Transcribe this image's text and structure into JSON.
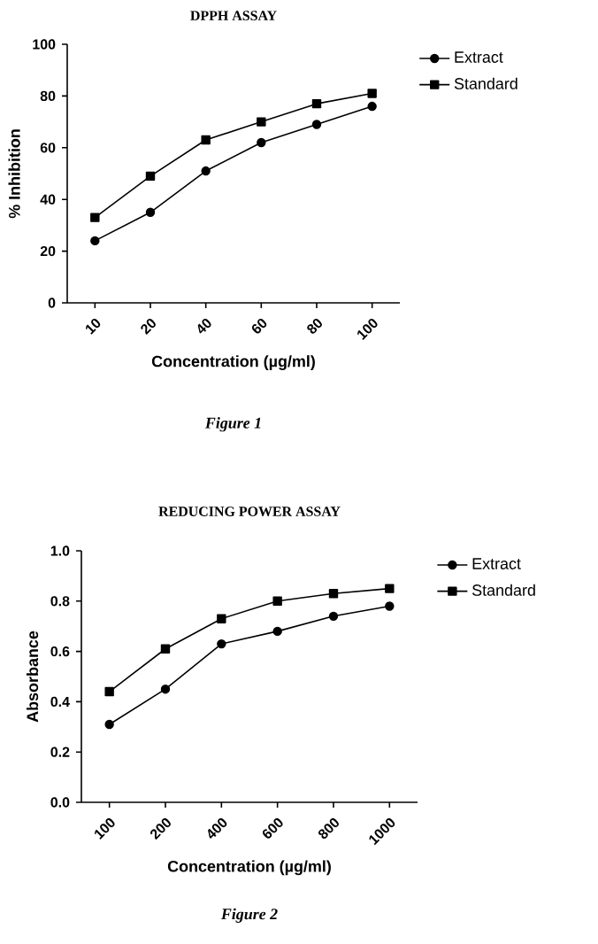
{
  "chart_data": [
    {
      "type": "line",
      "title": "DPPH ASSAY",
      "xlabel": "Concentration (µg/ml)",
      "ylabel": "% Inhibition",
      "categories": [
        "10",
        "20",
        "40",
        "60",
        "80",
        "100"
      ],
      "series": [
        {
          "name": "Extract",
          "color": "#000000",
          "marker": "circle",
          "values": [
            24,
            35,
            51,
            62,
            69,
            76
          ]
        },
        {
          "name": "Standard",
          "color": "#000000",
          "marker": "square",
          "values": [
            33,
            49,
            63,
            70,
            77,
            81
          ]
        }
      ],
      "ylim": [
        0,
        100
      ],
      "yticks": [
        0,
        20,
        40,
        60,
        80,
        100
      ],
      "legend": "top right",
      "line_style": "solid",
      "annotations": [
        "Figure 1"
      ]
    },
    {
      "type": "line",
      "title": "REDUCING POWER ASSAY",
      "xlabel": "Concentration (µg/ml)",
      "ylabel": "Absorbance",
      "categories": [
        "100",
        "200",
        "400",
        "600",
        "800",
        "1000"
      ],
      "series": [
        {
          "name": "Extract",
          "color": "#000000",
          "marker": "circle",
          "values": [
            0.31,
            0.45,
            0.63,
            0.68,
            0.74,
            0.78
          ]
        },
        {
          "name": "Standard",
          "color": "#000000",
          "marker": "square",
          "values": [
            0.44,
            0.61,
            0.73,
            0.8,
            0.83,
            0.85
          ]
        }
      ],
      "ylim": [
        0,
        1.0
      ],
      "yticks": [
        {
          "value": 0,
          "label": "0.0"
        },
        0.2,
        0.4,
        0.6,
        0.8,
        {
          "value": 1.0,
          "label": "1.0"
        }
      ],
      "legend": "top right",
      "line_style": "solid",
      "annotations": [
        "Figure 2"
      ]
    }
  ]
}
